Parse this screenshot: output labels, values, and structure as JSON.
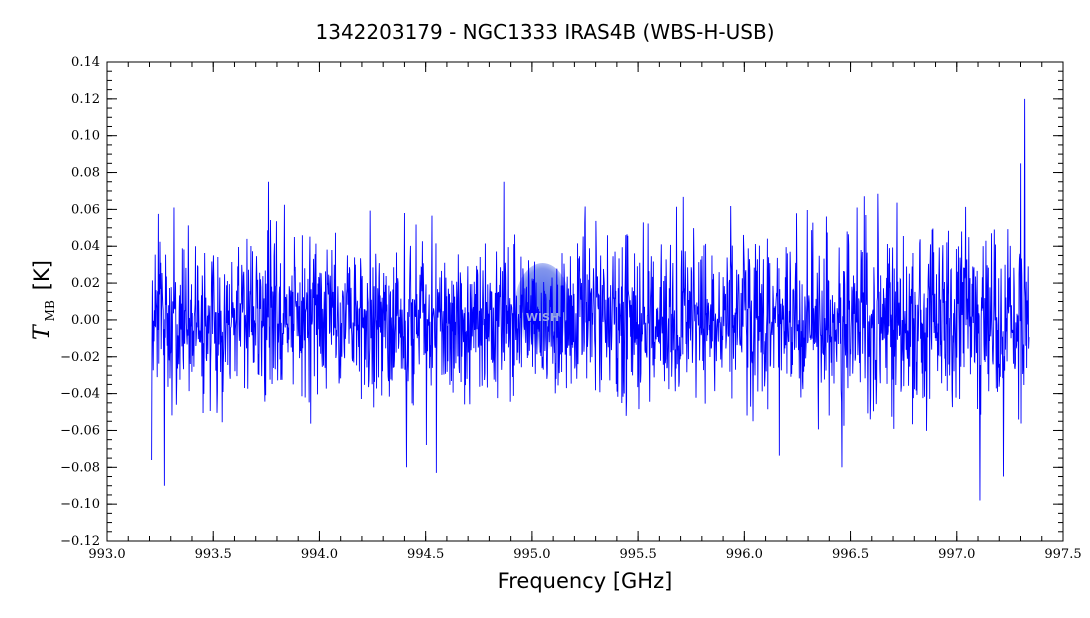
{
  "chart_data": {
    "type": "line",
    "title": "1342203179 - NGC1333 IRAS4B (WBS-H-USB)",
    "xlabel": "Frequency [GHz]",
    "ylabel": {
      "symbol": "T",
      "subscript": "MB",
      "unit": "[K]"
    },
    "xlim": [
      993.0,
      997.5
    ],
    "ylim": [
      -0.12,
      0.14
    ],
    "x_ticks": [
      "993.0",
      "993.5",
      "994.0",
      "994.5",
      "995.0",
      "995.5",
      "996.0",
      "996.5",
      "997.0",
      "997.5"
    ],
    "y_ticks": [
      "-0.12",
      "-0.10",
      "-0.08",
      "-0.06",
      "-0.04",
      "-0.02",
      "0.00",
      "0.02",
      "0.04",
      "0.06",
      "0.08",
      "0.10",
      "0.12",
      "0.14"
    ],
    "grid": false,
    "legend": "none",
    "series": [
      {
        "color": "#0000ff",
        "x_range": [
          993.21,
          997.34
        ],
        "baseline": 0.0,
        "noise_rms": 0.022,
        "features": [
          {
            "x": 993.21,
            "y": -0.076
          },
          {
            "x": 993.27,
            "y": -0.09
          },
          {
            "x": 993.76,
            "y": 0.075
          },
          {
            "x": 994.41,
            "y": -0.08
          },
          {
            "x": 994.55,
            "y": -0.083
          },
          {
            "x": 996.46,
            "y": -0.08
          },
          {
            "x": 997.11,
            "y": -0.098
          },
          {
            "x": 997.22,
            "y": -0.085
          },
          {
            "x": 997.3,
            "y": 0.085
          },
          {
            "x": 997.32,
            "y": 0.12
          }
        ]
      }
    ]
  },
  "watermark": {
    "text": "WISH",
    "color": "#3a58e0"
  }
}
